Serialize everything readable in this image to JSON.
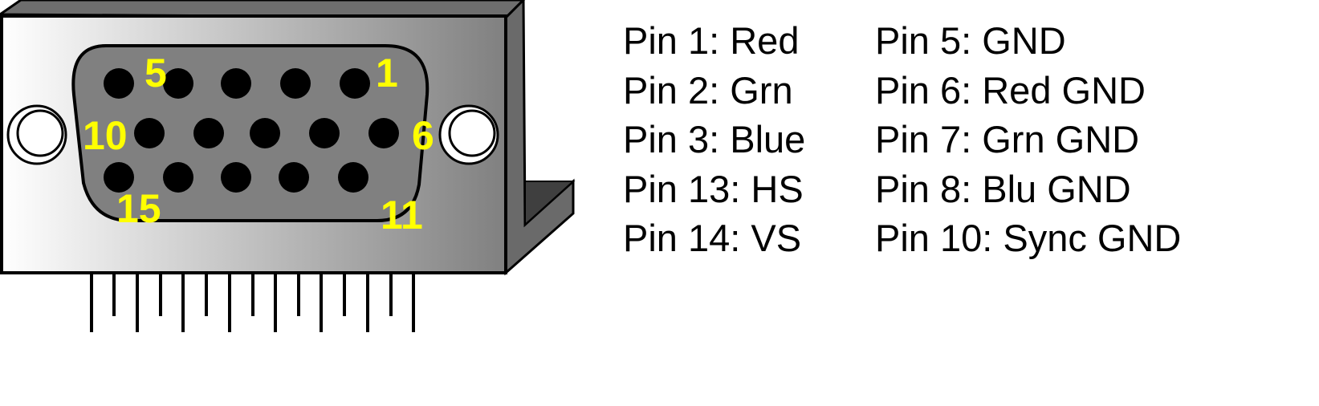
{
  "connector": {
    "pin_labels": {
      "pin1": "1",
      "pin5": "5",
      "pin6": "6",
      "pin10": "10",
      "pin11": "11",
      "pin15": "15"
    },
    "colors": {
      "pin_label": "#ffff00",
      "shell": "#808080",
      "pin": "#000000"
    }
  },
  "legend": {
    "left": [
      "Pin 1: Red",
      "Pin 2: Grn",
      "Pin 3: Blue",
      "Pin 13: HS",
      "Pin 14: VS"
    ],
    "right": [
      "Pin 5: GND",
      "Pin 6: Red GND",
      "Pin 7: Grn GND",
      "Pin 8: Blu GND",
      "Pin 10: Sync GND"
    ]
  }
}
